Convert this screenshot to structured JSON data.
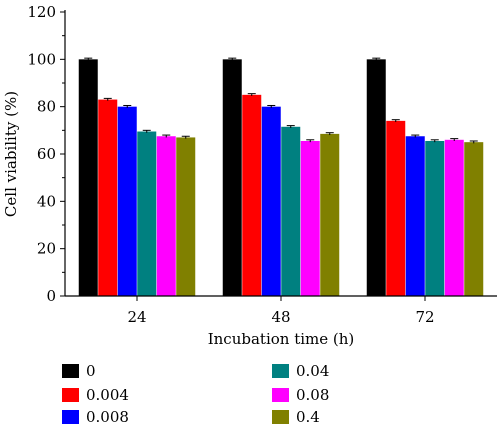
{
  "chart_data": {
    "type": "bar",
    "xlabel": "Incubation time (h)",
    "ylabel": "Cell viability (%)",
    "categories": [
      "24",
      "48",
      "72"
    ],
    "ylim": [
      0,
      120
    ],
    "yticks": [
      0,
      20,
      40,
      60,
      80,
      100,
      120
    ],
    "grid": false,
    "legend_position": "bottom",
    "series": [
      {
        "name": "0",
        "color": "#000000",
        "values": [
          100,
          100,
          100
        ],
        "errors": [
          0.5,
          0.5,
          0.5
        ]
      },
      {
        "name": "0.004",
        "color": "#ff0000",
        "values": [
          83,
          85,
          74
        ],
        "errors": [
          0.5,
          0.5,
          0.5
        ]
      },
      {
        "name": "0.008",
        "color": "#0000ff",
        "values": [
          80,
          80,
          67.5
        ],
        "errors": [
          0.5,
          0.5,
          0.5
        ]
      },
      {
        "name": "0.04",
        "color": "#008080",
        "values": [
          69.5,
          71.5,
          65.5
        ],
        "errors": [
          0.5,
          0.5,
          0.5
        ]
      },
      {
        "name": "0.08",
        "color": "#ff00ff",
        "values": [
          67.5,
          65.5,
          66
        ],
        "errors": [
          0.5,
          0.5,
          0.5
        ]
      },
      {
        "name": "0.4",
        "color": "#808000",
        "values": [
          67,
          68.5,
          65
        ],
        "errors": [
          0.5,
          0.5,
          0.5
        ]
      }
    ]
  }
}
